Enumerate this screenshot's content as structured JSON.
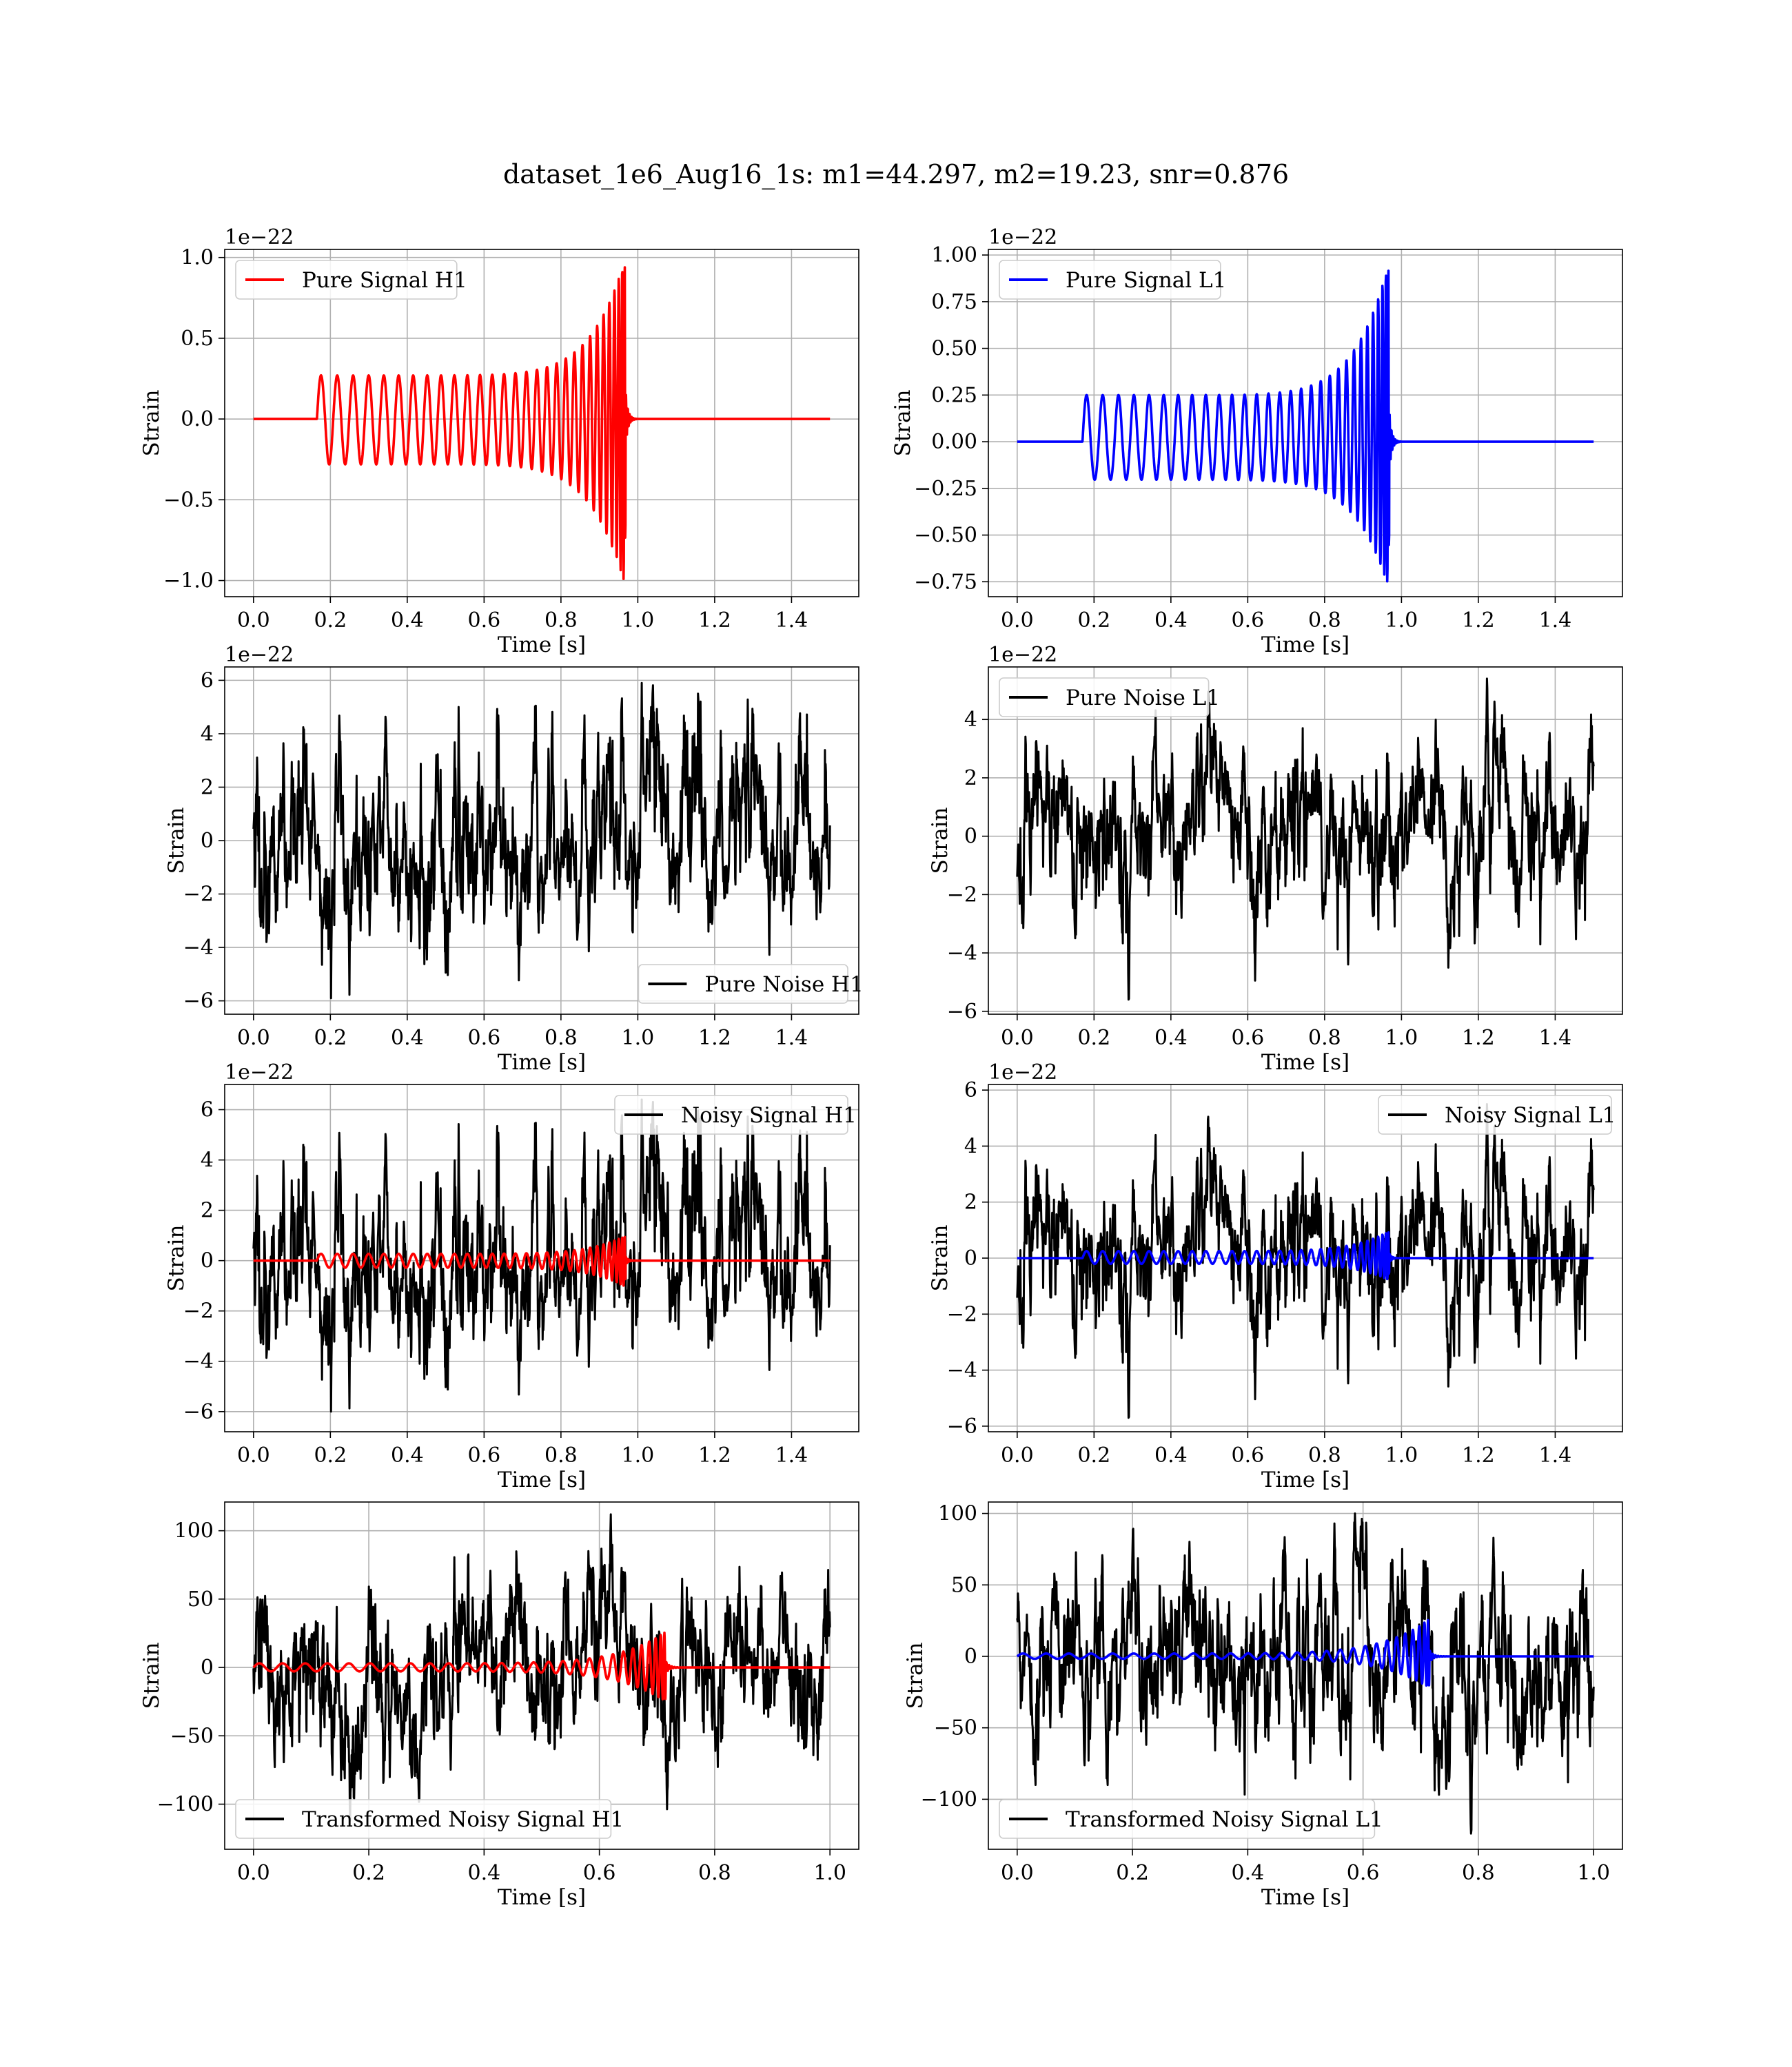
{
  "figure": {
    "title": "dataset_1e6_Aug16_1s: m1=44.297, m2=19.23, snr=0.876"
  },
  "colors": {
    "H1": "#ff0000",
    "L1": "#0000ff",
    "noise": "#000000",
    "grid": "#b0b0b0"
  },
  "chart_data": [
    {
      "type": "line",
      "panel": "H1 pure signal",
      "xlabel": "Time [s]",
      "ylabel": "Strain",
      "offset_text": "1e−22",
      "xlim": [
        -0.075,
        1.575
      ],
      "ylim": [
        -1.1,
        1.05
      ],
      "xticks": [
        0.0,
        0.2,
        0.4,
        0.6,
        0.8,
        1.0,
        1.2,
        1.4
      ],
      "xtick_labels": [
        "0.0",
        "0.2",
        "0.4",
        "0.6",
        "0.8",
        "1.0",
        "1.2",
        "1.4"
      ],
      "yticks": [
        -1.0,
        -0.5,
        0.0,
        0.5,
        1.0
      ],
      "ytick_labels": [
        "−1.0",
        "−0.5",
        "0.0",
        "0.5",
        "1.0"
      ],
      "grid": true,
      "legend_loc": "upper left",
      "series": [
        {
          "name": "Pure Signal H1",
          "kind": "chirp",
          "color": "#ff0000",
          "x_range": [
            0.0,
            1.5
          ],
          "t_start": 0.165,
          "t_merger": 0.968,
          "amp_start": 0.27,
          "amp_peak": 1.0,
          "amp_min_peak": -1.04,
          "cycles": 30,
          "scale": 1.0
        }
      ]
    },
    {
      "type": "line",
      "panel": "L1 pure signal",
      "xlabel": "Time [s]",
      "ylabel": "Strain",
      "offset_text": "1e−22",
      "xlim": [
        -0.075,
        1.575
      ],
      "ylim": [
        -0.83,
        1.03
      ],
      "xticks": [
        0.0,
        0.2,
        0.4,
        0.6,
        0.8,
        1.0,
        1.2,
        1.4
      ],
      "xtick_labels": [
        "0.0",
        "0.2",
        "0.4",
        "0.6",
        "0.8",
        "1.0",
        "1.2",
        "1.4"
      ],
      "yticks": [
        -0.75,
        -0.5,
        -0.25,
        0.0,
        0.25,
        0.5,
        0.75,
        1.0
      ],
      "ytick_labels": [
        "−0.75",
        "−0.50",
        "−0.25",
        "0.00",
        "0.25",
        "0.50",
        "0.75",
        "1.00"
      ],
      "grid": true,
      "legend_loc": "upper left",
      "series": [
        {
          "name": "Pure Signal L1",
          "kind": "chirp",
          "color": "#0000ff",
          "x_range": [
            0.0,
            1.5
          ],
          "t_start": 0.17,
          "t_merger": 0.968,
          "amp_start": 0.25,
          "amp_peak": 0.97,
          "amp_min_peak": -0.79,
          "cycles": 30,
          "scale": 1.0
        }
      ]
    },
    {
      "type": "line",
      "panel": "H1 pure noise",
      "xlabel": "Time [s]",
      "ylabel": "Strain",
      "offset_text": "1e−22",
      "xlim": [
        -0.075,
        1.575
      ],
      "ylim": [
        -6.5,
        6.5
      ],
      "xticks": [
        0.0,
        0.2,
        0.4,
        0.6,
        0.8,
        1.0,
        1.2,
        1.4
      ],
      "xtick_labels": [
        "0.0",
        "0.2",
        "0.4",
        "0.6",
        "0.8",
        "1.0",
        "1.2",
        "1.4"
      ],
      "yticks": [
        -6,
        -4,
        -2,
        0,
        2,
        4,
        6
      ],
      "ytick_labels": [
        "−6",
        "−4",
        "−2",
        "0",
        "2",
        "4",
        "6"
      ],
      "grid": true,
      "legend_loc": "lower right",
      "series": [
        {
          "name": "Pure Noise H1",
          "kind": "noise",
          "color": "#000000",
          "x_range": [
            0.0,
            1.5
          ],
          "sigma": 1.7,
          "y_max": 5.9,
          "y_min": -5.9,
          "seed": 11
        }
      ]
    },
    {
      "type": "line",
      "panel": "L1 pure noise",
      "xlabel": "Time [s]",
      "ylabel": "Strain",
      "offset_text": "1e−22",
      "xlim": [
        -0.075,
        1.575
      ],
      "ylim": [
        -6.1,
        5.8
      ],
      "xticks": [
        0.0,
        0.2,
        0.4,
        0.6,
        0.8,
        1.0,
        1.2,
        1.4
      ],
      "xtick_labels": [
        "0.0",
        "0.2",
        "0.4",
        "0.6",
        "0.8",
        "1.0",
        "1.2",
        "1.4"
      ],
      "yticks": [
        -6,
        -4,
        -2,
        0,
        2,
        4
      ],
      "ytick_labels": [
        "−6",
        "−4",
        "−2",
        "0",
        "2",
        "4"
      ],
      "grid": true,
      "legend_loc": "upper left",
      "series": [
        {
          "name": "Pure Noise L1",
          "kind": "noise",
          "color": "#000000",
          "x_range": [
            0.0,
            1.5
          ],
          "sigma": 1.6,
          "y_max": 5.4,
          "y_min": -5.6,
          "seed": 23
        }
      ]
    },
    {
      "type": "line",
      "panel": "H1 noisy signal",
      "xlabel": "Time [s]",
      "ylabel": "Strain",
      "offset_text": "1e−22",
      "xlim": [
        -0.075,
        1.575
      ],
      "ylim": [
        -6.8,
        7.0
      ],
      "xticks": [
        0.0,
        0.2,
        0.4,
        0.6,
        0.8,
        1.0,
        1.2,
        1.4
      ],
      "xtick_labels": [
        "0.0",
        "0.2",
        "0.4",
        "0.6",
        "0.8",
        "1.0",
        "1.2",
        "1.4"
      ],
      "yticks": [
        -6,
        -4,
        -2,
        0,
        2,
        4,
        6
      ],
      "ytick_labels": [
        "−6",
        "−4",
        "−2",
        "0",
        "2",
        "4",
        "6"
      ],
      "grid": true,
      "legend_loc": "upper right",
      "series": [
        {
          "name": "Noisy Signal H1",
          "kind": "noise",
          "color": "#000000",
          "x_range": [
            0.0,
            1.5
          ],
          "sigma": 1.75,
          "y_max": 6.4,
          "y_min": -6.0,
          "seed": 11
        },
        {
          "kind": "chirp",
          "color": "#ff0000",
          "x_range": [
            0.0,
            1.5
          ],
          "t_start": 0.165,
          "t_merger": 0.968,
          "amp_start": 0.27,
          "amp_peak": 1.0,
          "amp_min_peak": -1.04,
          "cycles": 30,
          "scale": 1.0
        }
      ]
    },
    {
      "type": "line",
      "panel": "L1 noisy signal",
      "xlabel": "Time [s]",
      "ylabel": "Strain",
      "offset_text": "1e−22",
      "xlim": [
        -0.075,
        1.575
      ],
      "ylim": [
        -6.2,
        6.2
      ],
      "xticks": [
        0.0,
        0.2,
        0.4,
        0.6,
        0.8,
        1.0,
        1.2,
        1.4
      ],
      "xtick_labels": [
        "0.0",
        "0.2",
        "0.4",
        "0.6",
        "0.8",
        "1.0",
        "1.2",
        "1.4"
      ],
      "yticks": [
        -6,
        -4,
        -2,
        0,
        2,
        4,
        6
      ],
      "ytick_labels": [
        "−6",
        "−4",
        "−2",
        "0",
        "2",
        "4",
        "6"
      ],
      "grid": true,
      "legend_loc": "upper right",
      "series": [
        {
          "name": "Noisy Signal L1",
          "kind": "noise",
          "color": "#000000",
          "x_range": [
            0.0,
            1.5
          ],
          "sigma": 1.65,
          "y_max": 5.5,
          "y_min": -5.7,
          "seed": 23
        },
        {
          "kind": "chirp",
          "color": "#0000ff",
          "x_range": [
            0.0,
            1.5
          ],
          "t_start": 0.17,
          "t_merger": 0.968,
          "amp_start": 0.25,
          "amp_peak": 0.97,
          "amp_min_peak": -0.79,
          "cycles": 30,
          "scale": 1.0
        }
      ]
    },
    {
      "type": "line",
      "panel": "H1 transformed",
      "xlabel": "Time [s]",
      "ylabel": "Strain",
      "xlim": [
        -0.05,
        1.05
      ],
      "ylim": [
        -133,
        121
      ],
      "xticks": [
        0.0,
        0.2,
        0.4,
        0.6,
        0.8,
        1.0
      ],
      "xtick_labels": [
        "0.0",
        "0.2",
        "0.4",
        "0.6",
        "0.8",
        "1.0"
      ],
      "yticks": [
        -100,
        -50,
        0,
        50,
        100
      ],
      "ytick_labels": [
        "−100",
        "−50",
        "0",
        "50",
        "100"
      ],
      "grid": true,
      "legend_loc": "lower left",
      "series": [
        {
          "name": "Transformed Noisy Signal H1",
          "kind": "noise",
          "color": "#000000",
          "x_range": [
            0.0,
            1.0
          ],
          "sigma": 28,
          "y_max": 112,
          "y_min": -112,
          "seed": 37
        },
        {
          "kind": "chirp",
          "color": "#ff0000",
          "x_range": [
            0.0,
            1.0
          ],
          "t_start": 0.0,
          "t_merger": 0.715,
          "amp_start": 3,
          "amp_peak": 26,
          "amp_min_peak": -25,
          "cycles": 28,
          "scale": 1.0
        }
      ]
    },
    {
      "type": "line",
      "panel": "L1 transformed",
      "xlabel": "Time [s]",
      "ylabel": "Strain",
      "xlim": [
        -0.05,
        1.05
      ],
      "ylim": [
        -135,
        108
      ],
      "xticks": [
        0.0,
        0.2,
        0.4,
        0.6,
        0.8,
        1.0
      ],
      "xtick_labels": [
        "0.0",
        "0.2",
        "0.4",
        "0.6",
        "0.8",
        "1.0"
      ],
      "yticks": [
        -100,
        -50,
        0,
        50,
        100
      ],
      "ytick_labels": [
        "−100",
        "−50",
        "0",
        "50",
        "100"
      ],
      "grid": true,
      "legend_loc": "lower left",
      "series": [
        {
          "name": "Transformed Noisy Signal L1",
          "kind": "noise",
          "color": "#000000",
          "x_range": [
            0.0,
            1.0
          ],
          "sigma": 28,
          "y_max": 100,
          "y_min": -124,
          "seed": 41
        },
        {
          "kind": "chirp",
          "color": "#0000ff",
          "x_range": [
            0.0,
            1.0
          ],
          "t_start": 0.0,
          "t_merger": 0.715,
          "amp_start": 2,
          "amp_peak": 26,
          "amp_min_peak": -22,
          "cycles": 28,
          "scale": 1.0
        }
      ]
    }
  ]
}
